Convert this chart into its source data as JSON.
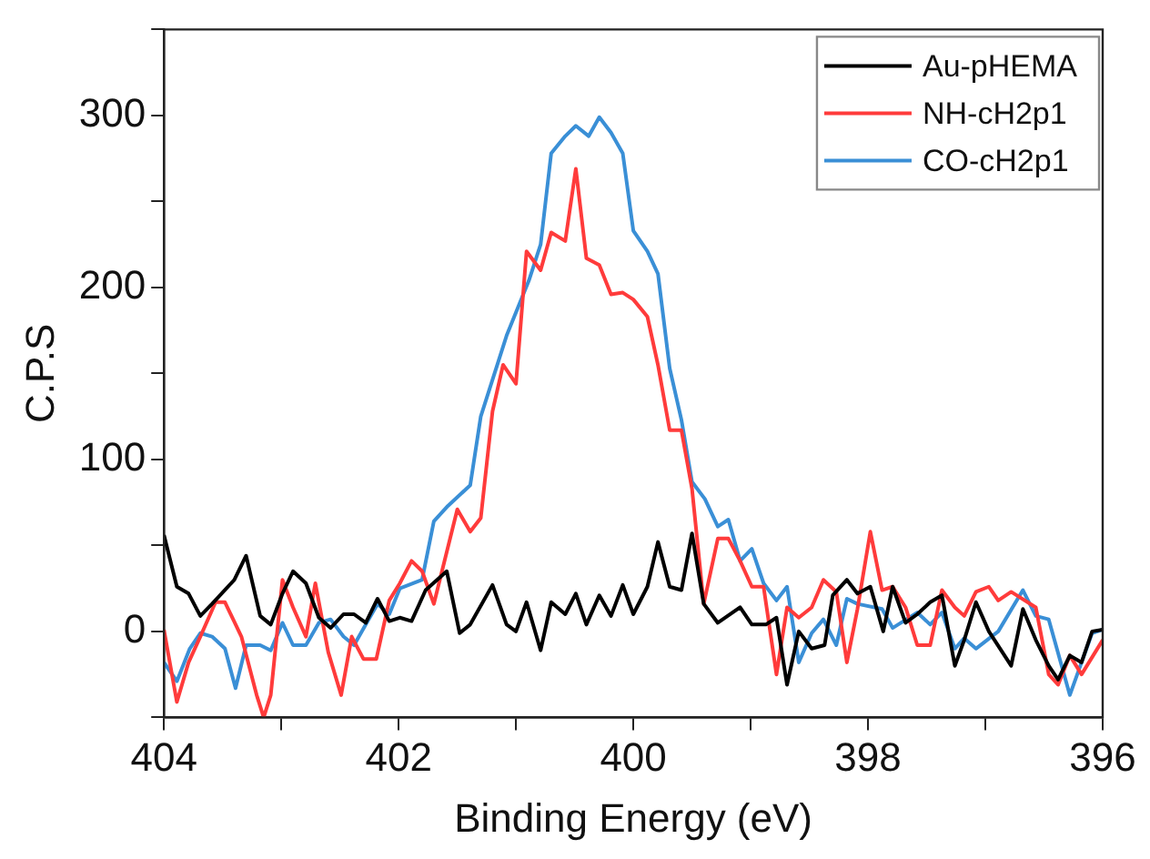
{
  "chart_data": {
    "type": "line",
    "xlabel": "Binding Energy (eV)",
    "ylabel": "C.P.S",
    "xlim": [
      404,
      396
    ],
    "ylim": [
      -50,
      350
    ],
    "xticks": [
      404,
      {
        "value": 403,
        "label": null
      },
      402,
      {
        "value": 401,
        "label": null
      },
      400,
      {
        "value": 399,
        "label": null
      },
      398,
      {
        "value": 397,
        "label": null
      },
      396
    ],
    "yticks": [
      {
        "value": -50,
        "label": null
      },
      0,
      {
        "value": 50,
        "label": null
      },
      100,
      {
        "value": 150,
        "label": null
      },
      200,
      {
        "value": 250,
        "label": null
      },
      300,
      {
        "value": 350,
        "label": null
      }
    ],
    "grid": false,
    "legend": "top right",
    "marker": "none",
    "line_style": "solid",
    "series": [
      {
        "name": "Au-pHEMA",
        "color": "#000000",
        "x": [
          404,
          403.89,
          403.79,
          403.69,
          403.59,
          403.4,
          403.3,
          403.18,
          403.09,
          402.99,
          402.9,
          402.79,
          402.68,
          402.58,
          402.47,
          402.38,
          402.28,
          402.18,
          402.08,
          401.99,
          401.89,
          401.77,
          401.59,
          401.48,
          401.39,
          401.2,
          401.08,
          401,
          400.91,
          400.79,
          400.7,
          400.58,
          400.49,
          400.4,
          400.29,
          400.19,
          400.09,
          400,
          399.88,
          399.79,
          399.69,
          399.59,
          399.5,
          399.4,
          399.28,
          399.09,
          398.99,
          398.87,
          398.78,
          398.69,
          398.59,
          398.48,
          398.37,
          398.3,
          398.18,
          398.09,
          397.98,
          397.87,
          397.79,
          397.68,
          397.58,
          397.47,
          397.37,
          397.26,
          397.18,
          397.08,
          396.97,
          396.78,
          396.68,
          396.57,
          396.46,
          396.38,
          396.28,
          396.18,
          396.09,
          396
        ],
        "values": [
          56,
          26,
          22,
          9,
          16,
          30,
          44,
          9,
          4,
          22,
          35,
          28,
          8,
          2,
          10,
          10,
          5,
          19,
          6,
          8,
          6,
          24,
          35,
          -1,
          4,
          27,
          4,
          0,
          17,
          -11,
          17,
          10,
          22,
          4,
          21,
          9,
          27,
          10,
          26,
          52,
          26,
          24,
          57,
          16,
          5,
          14,
          4,
          4,
          8,
          -31,
          0,
          -10,
          -8,
          21,
          30,
          22,
          26,
          0,
          26,
          5,
          10,
          17,
          21,
          -20,
          -5,
          17,
          0,
          -20,
          13,
          -5,
          -20,
          -28,
          -14,
          -18,
          0,
          1
        ]
      },
      {
        "name": "NH-cH2p1",
        "color": "#ff3b3b",
        "x": [
          404,
          403.89,
          403.79,
          403.69,
          403.56,
          403.48,
          403.34,
          403.21,
          403.15,
          403.09,
          402.99,
          402.9,
          402.79,
          402.71,
          402.6,
          402.49,
          402.4,
          402.3,
          402.19,
          402.08,
          401.99,
          401.89,
          401.8,
          401.7,
          401.5,
          401.39,
          401.3,
          401.2,
          401.11,
          401,
          400.91,
          400.79,
          400.7,
          400.58,
          400.49,
          400.4,
          400.29,
          400.19,
          400.09,
          400,
          399.88,
          399.79,
          399.69,
          399.59,
          399.5,
          399.4,
          399.28,
          399.19,
          399.09,
          398.99,
          398.89,
          398.78,
          398.69,
          398.59,
          398.48,
          398.38,
          398.27,
          398.18,
          398.09,
          397.98,
          397.88,
          397.79,
          397.68,
          397.58,
          397.47,
          397.37,
          397.26,
          397.18,
          397.08,
          396.97,
          396.89,
          396.78,
          396.57,
          396.46,
          396.38,
          396.28,
          396.18,
          396
        ],
        "values": [
          1,
          -41,
          -18,
          -3,
          17,
          17,
          -3,
          -37,
          -50,
          -37,
          30,
          14,
          -3,
          28,
          -12,
          -37,
          -3,
          -16,
          -16,
          18,
          28,
          41,
          35,
          16,
          71,
          58,
          66,
          128,
          155,
          144,
          221,
          210,
          232,
          227,
          269,
          217,
          213,
          196,
          197,
          193,
          183,
          155,
          117,
          117,
          83,
          16,
          54,
          54,
          41,
          26,
          26,
          -25,
          14,
          8,
          14,
          30,
          23,
          -18,
          13,
          58,
          24,
          26,
          14,
          -8,
          -8,
          24,
          14,
          9,
          23,
          26,
          18,
          23,
          14,
          -25,
          -31,
          -14,
          -25,
          -5
        ]
      },
      {
        "name": "CO-cH2p1",
        "color": "#3a8fd6",
        "x": [
          404,
          403.89,
          403.78,
          403.69,
          403.59,
          403.48,
          403.39,
          403.3,
          403.18,
          403.09,
          402.99,
          402.9,
          402.79,
          402.68,
          402.58,
          402.47,
          402.38,
          402.28,
          402.18,
          402.08,
          401.99,
          401.8,
          401.7,
          401.58,
          401.39,
          401.3,
          401.08,
          400.89,
          400.79,
          400.7,
          400.58,
          400.49,
          400.38,
          400.29,
          400.19,
          400.09,
          400,
          399.88,
          399.79,
          399.69,
          399.59,
          399.5,
          399.39,
          399.28,
          399.19,
          399.09,
          398.99,
          398.89,
          398.78,
          398.69,
          398.59,
          398.48,
          398.38,
          398.27,
          398.18,
          398.09,
          397.88,
          397.79,
          397.58,
          397.47,
          397.37,
          397.26,
          397.18,
          397.08,
          396.89,
          396.68,
          396.57,
          396.46,
          396.28,
          396.18,
          396.09,
          396
        ],
        "values": [
          -18,
          -29,
          -10,
          -1,
          -3,
          -10,
          -33,
          -8,
          -8,
          -11,
          5,
          -8,
          -8,
          5,
          7,
          -3,
          -8,
          4,
          16,
          10,
          25,
          30,
          64,
          73,
          85,
          125,
          172,
          204,
          225,
          278,
          288,
          294,
          288,
          299,
          290,
          278,
          233,
          221,
          208,
          153,
          123,
          87,
          77,
          61,
          65,
          41,
          48,
          28,
          18,
          26,
          -18,
          -1,
          7,
          -8,
          19,
          16,
          13,
          2,
          11,
          4,
          11,
          -10,
          -4,
          -10,
          0,
          24,
          9,
          7,
          -37,
          -18,
          -1,
          1
        ]
      }
    ]
  }
}
